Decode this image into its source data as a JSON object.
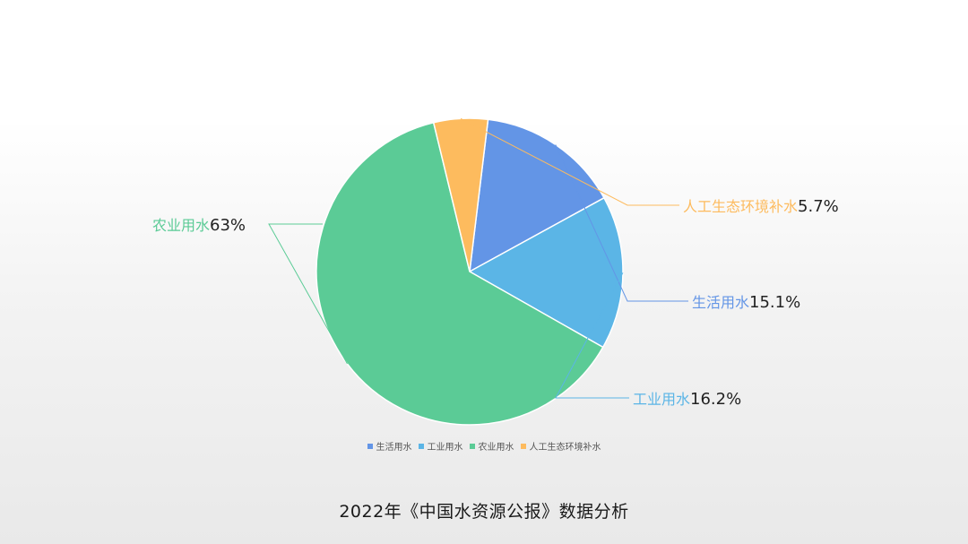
{
  "chart_data": {
    "type": "pie",
    "title": "",
    "slices": [
      {
        "name": "生活用水",
        "value": 15.1,
        "value_label": "15.1%",
        "color": "#6395e6"
      },
      {
        "name": "工业用水",
        "value": 16.2,
        "value_label": "16.2%",
        "color": "#5bb5e6"
      },
      {
        "name": "农业用水",
        "value": 63,
        "value_label": "63%",
        "color": "#5bcb96"
      },
      {
        "name": "人工生态环境补水",
        "value": 5.7,
        "value_label": "5.7%",
        "color": "#fdbb5e"
      }
    ],
    "start_angle_deg": 83.1,
    "direction": "clockwise",
    "legend_position": "bottom"
  },
  "caption": "2022年《中国水资源公报》数据分析"
}
